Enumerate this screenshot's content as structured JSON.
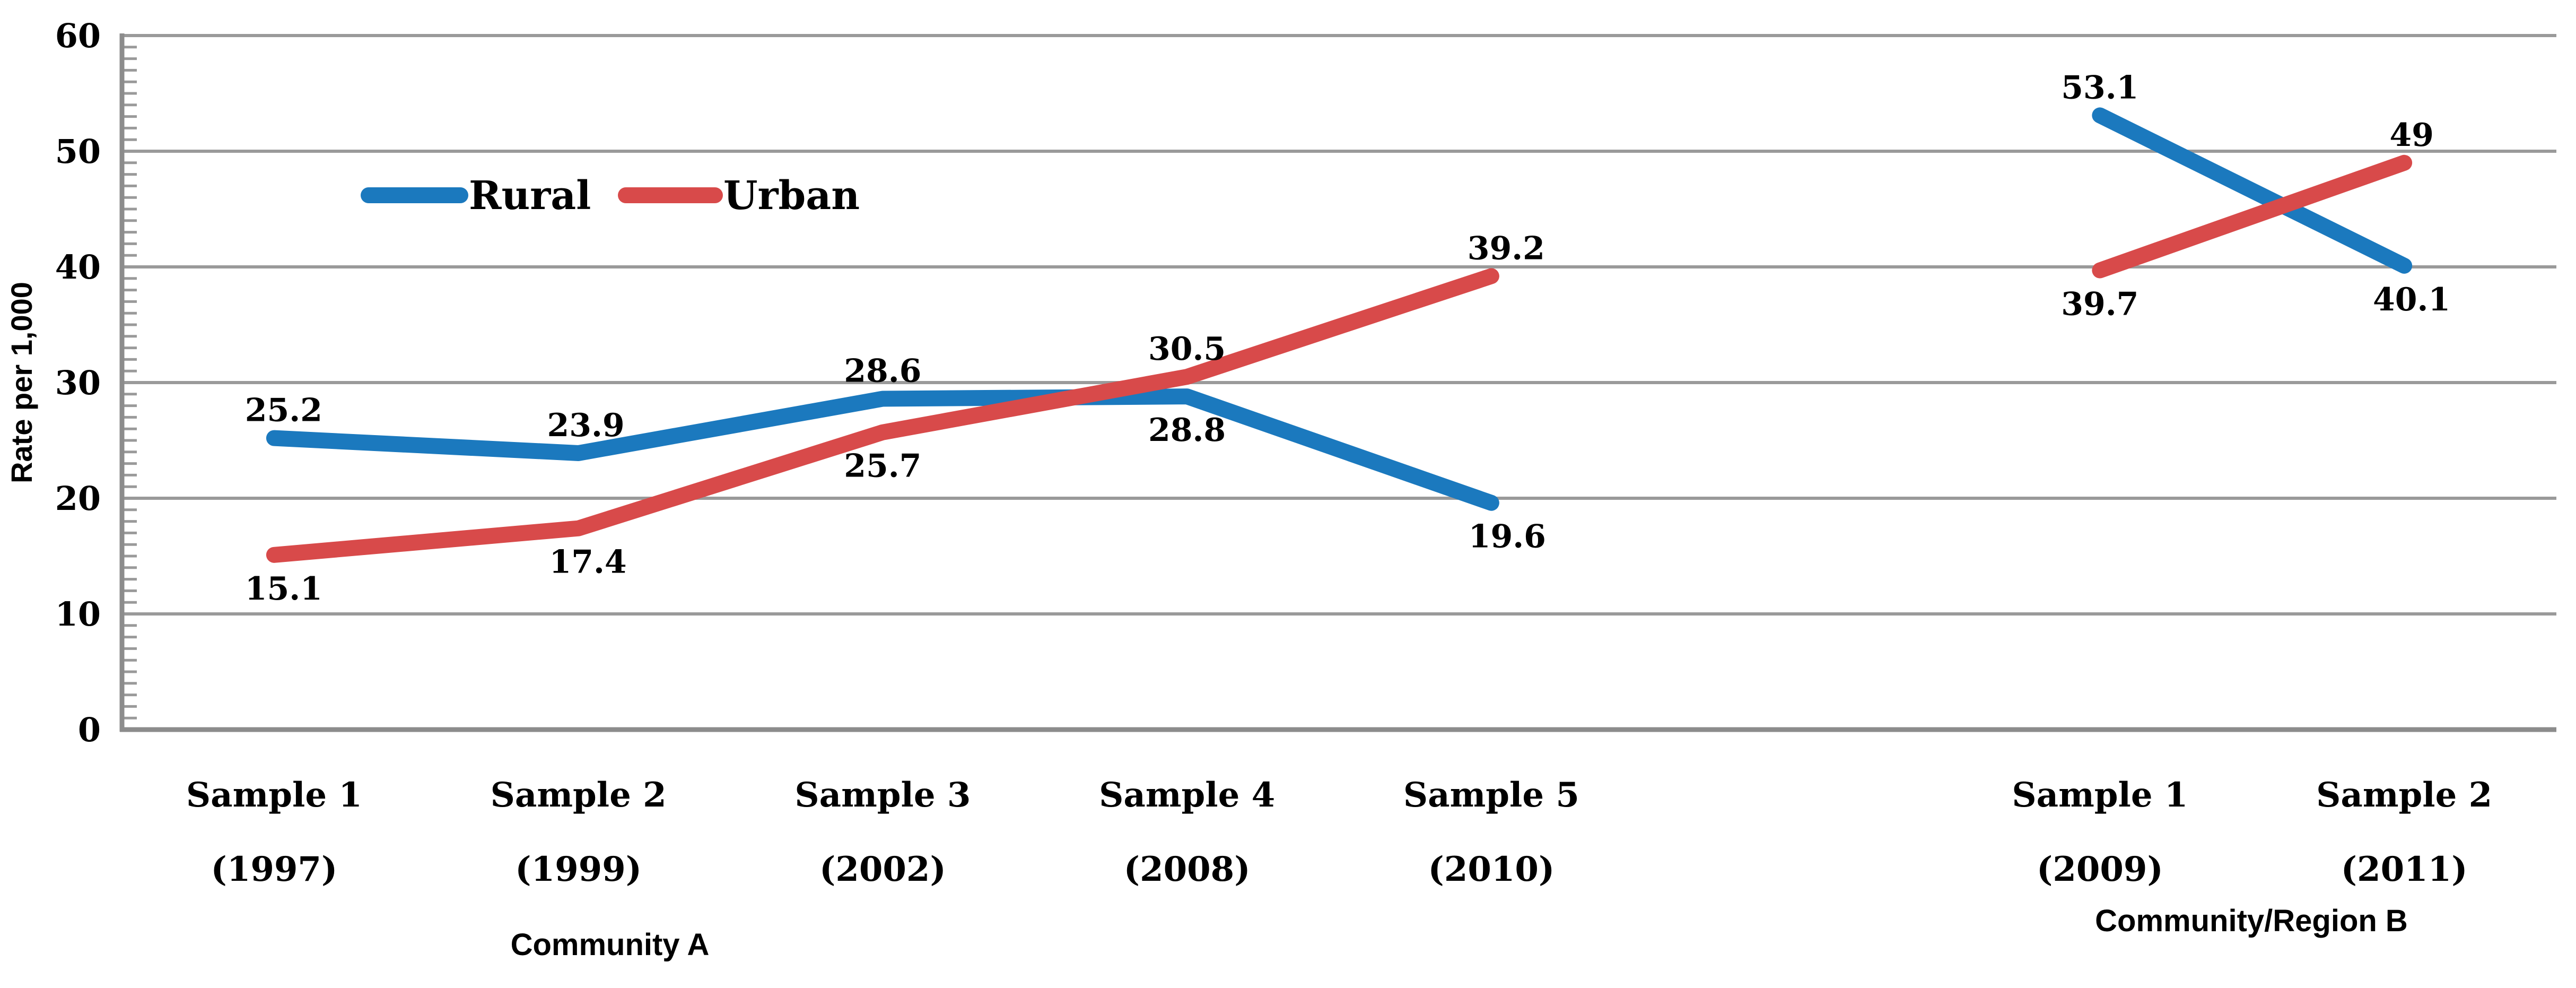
{
  "chart_data": {
    "type": "line",
    "title": "",
    "ylabel": "Rate per 1,000",
    "ylim": [
      0,
      60
    ],
    "y_major_tick_step": 10,
    "y_minor_tick_step": 1,
    "y_ticks": [
      "0",
      "10",
      "20",
      "30",
      "40",
      "50",
      "60"
    ],
    "grid": true,
    "legend_position": "inside-top-left",
    "x_slots": 8,
    "categories": [
      {
        "slot": 0,
        "label": "Sample 1",
        "sublabel": "(1997)"
      },
      {
        "slot": 1,
        "label": "Sample 2",
        "sublabel": "(1999)"
      },
      {
        "slot": 2,
        "label": "Sample 3",
        "sublabel": "(2002)"
      },
      {
        "slot": 3,
        "label": "Sample 4",
        "sublabel": "(2008)"
      },
      {
        "slot": 4,
        "label": "Sample 5",
        "sublabel": "(2010)"
      },
      {
        "slot": 6,
        "label": "Sample 1",
        "sublabel": "(2009)"
      },
      {
        "slot": 7,
        "label": "Sample 2",
        "sublabel": "(2011)"
      }
    ],
    "group_labels": [
      {
        "text": "Community A",
        "x": 1150,
        "y": 1800
      },
      {
        "text": "Community/Region B",
        "x": 4245,
        "y": 1755
      }
    ],
    "series": [
      {
        "name": "Rural",
        "color": "#1B79BE",
        "points": [
          {
            "slot": 0,
            "value": 25.2,
            "label": "25.2",
            "pos": "above",
            "dx": 18
          },
          {
            "slot": 1,
            "value": 23.9,
            "label": "23.9",
            "pos": "above",
            "dx": 14
          },
          {
            "slot": 2,
            "value": 28.6,
            "label": "28.6",
            "pos": "above",
            "dx": 0
          },
          {
            "slot": 3,
            "value": 28.8,
            "label": "28.8",
            "pos": "below",
            "dx": 0
          },
          {
            "slot": 4,
            "value": 19.6,
            "label": "19.6",
            "pos": "below",
            "dx": 30
          },
          {
            "slot": 6,
            "value": 53.1,
            "label": "53.1",
            "pos": "above",
            "dx": 0
          },
          {
            "slot": 7,
            "value": 40.1,
            "label": "40.1",
            "pos": "below",
            "dx": 14
          }
        ]
      },
      {
        "name": "Urban",
        "color": "#D84A4A",
        "points": [
          {
            "slot": 0,
            "value": 15.1,
            "label": "15.1",
            "pos": "below",
            "dx": 18
          },
          {
            "slot": 1,
            "value": 17.4,
            "label": "17.4",
            "pos": "below",
            "dx": 18
          },
          {
            "slot": 2,
            "value": 25.7,
            "label": "25.7",
            "pos": "below",
            "dx": 0
          },
          {
            "slot": 3,
            "value": 30.5,
            "label": "30.5",
            "pos": "above",
            "dx": 0
          },
          {
            "slot": 4,
            "value": 39.2,
            "label": "39.2",
            "pos": "above",
            "dx": 28
          },
          {
            "slot": 6,
            "value": 39.7,
            "label": "39.7",
            "pos": "below",
            "dx": 0
          },
          {
            "slot": 7,
            "value": 49,
            "label": "49",
            "pos": "above",
            "dx": 14
          }
        ]
      }
    ],
    "legend": [
      {
        "name": "Rural",
        "color": "#1B79BE"
      },
      {
        "name": "Urban",
        "color": "#D84A4A"
      }
    ],
    "colors": {
      "grid": "#9A9A9A",
      "axis": "#8C8C8C",
      "text": "#000000"
    }
  }
}
